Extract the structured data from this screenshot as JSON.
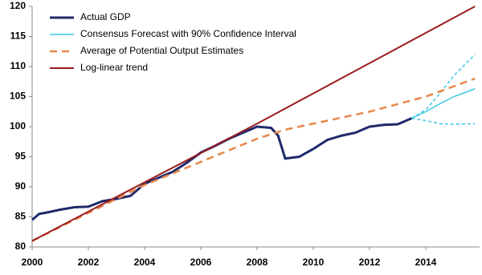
{
  "chart_data": {
    "type": "line",
    "xlim": [
      2000,
      2016
    ],
    "xticks": [
      2000,
      2002,
      2004,
      2006,
      2008,
      2010,
      2012,
      2014
    ],
    "ylim": [
      80,
      120
    ],
    "yticks": [
      80,
      85,
      90,
      95,
      100,
      105,
      110,
      115,
      120
    ],
    "legend": "upper-left",
    "series": [
      {
        "name": "Actual GDP",
        "color": "#1f2a6b",
        "style": "solid",
        "width": 3,
        "x": [
          2000,
          2000.25,
          2000.5,
          2001,
          2001.5,
          2002,
          2002.5,
          2003,
          2003.5,
          2004,
          2004.5,
          2005,
          2005.5,
          2006,
          2006.5,
          2007,
          2007.5,
          2008,
          2008.5,
          2008.75,
          2009,
          2009.5,
          2010,
          2010.5,
          2011,
          2011.5,
          2012,
          2012.5,
          2013,
          2013.5
        ],
        "values": [
          84.5,
          85.5,
          85.7,
          86.2,
          86.6,
          86.7,
          87.6,
          88.0,
          88.5,
          90.5,
          91.5,
          92.5,
          94.0,
          95.7,
          96.8,
          98.0,
          99.0,
          100.0,
          99.8,
          98.5,
          94.7,
          95.0,
          96.3,
          97.8,
          98.5,
          99.0,
          100.0,
          100.3,
          100.4,
          101.4
        ]
      },
      {
        "name": "Consensus Forecast with 90% Confidence Interval",
        "color": "#3cc8e6",
        "style": "solid",
        "width": 1.5,
        "x": [
          2013.5,
          2014,
          2014.5,
          2015,
          2015.75
        ],
        "values": [
          101.4,
          102.5,
          103.8,
          105.0,
          106.3
        ],
        "lower": [
          101.4,
          101.0,
          100.5,
          100.4,
          100.5
        ],
        "upper": [
          101.4,
          102.8,
          105.5,
          108.5,
          112.0
        ]
      },
      {
        "name": "Average of Potential Output Estimates",
        "color": "#e8874a",
        "style": "dashed",
        "width": 2.5,
        "x": [
          2000,
          2004,
          2008,
          2009,
          2012,
          2014,
          2015.75
        ],
        "values": [
          81.0,
          90.3,
          98.0,
          99.5,
          102.5,
          105.0,
          108.0
        ]
      },
      {
        "name": "Log-linear trend",
        "color": "#9b1b1f",
        "style": "solid",
        "width": 2,
        "x": [
          2000,
          2008,
          2015.75
        ],
        "values": [
          81.0,
          100.5,
          120.0
        ]
      }
    ]
  }
}
